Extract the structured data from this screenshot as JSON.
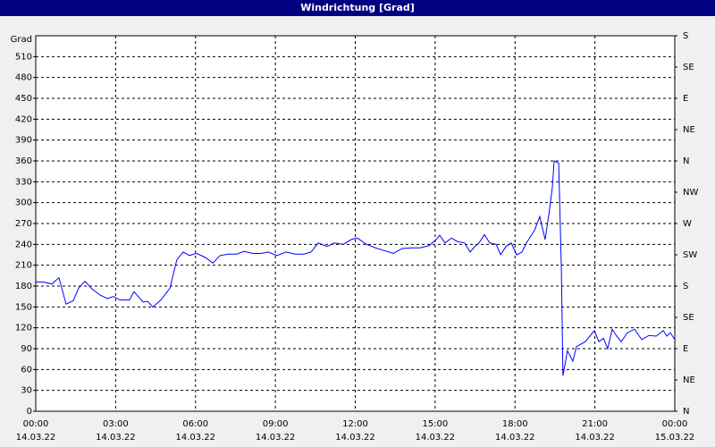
{
  "chart_data": {
    "type": "line",
    "title": "Windrichtung [Grad]",
    "y_label": "Grad",
    "xlim": [
      0,
      24
    ],
    "xticks": [
      {
        "value": 0,
        "label": "00:00"
      },
      {
        "value": 3,
        "label": "03:00"
      },
      {
        "value": 6,
        "label": "06:00"
      },
      {
        "value": 9,
        "label": "09:00"
      },
      {
        "value": 12,
        "label": "12:00"
      },
      {
        "value": 15,
        "label": "15:00"
      },
      {
        "value": 18,
        "label": "18:00"
      },
      {
        "value": 21,
        "label": "21:00"
      },
      {
        "value": 24,
        "label": "00:00"
      }
    ],
    "xtick_dates": [
      "14.03.22",
      "14.03.22",
      "14.03.22",
      "14.03.22",
      "14.03.22",
      "14.03.22",
      "14.03.22",
      "14.03.22",
      "15.03.22"
    ],
    "ylim": [
      0,
      540
    ],
    "yticks": [
      0,
      30,
      60,
      90,
      120,
      150,
      180,
      210,
      240,
      270,
      300,
      330,
      360,
      390,
      420,
      450,
      480,
      510
    ],
    "y2lim": [
      0,
      540
    ],
    "y2ticks": [
      {
        "value": 0,
        "label": "N"
      },
      {
        "value": 45,
        "label": "NE"
      },
      {
        "value": 90,
        "label": "E"
      },
      {
        "value": 135,
        "label": "SE"
      },
      {
        "value": 180,
        "label": "S"
      },
      {
        "value": 225,
        "label": "SW"
      },
      {
        "value": 270,
        "label": "W"
      },
      {
        "value": 315,
        "label": "NW"
      },
      {
        "value": 360,
        "label": "N"
      },
      {
        "value": 405,
        "label": "NE"
      },
      {
        "value": 450,
        "label": "E"
      },
      {
        "value": 495,
        "label": "SE"
      },
      {
        "value": 540,
        "label": "S"
      }
    ],
    "grid": true,
    "color": "#0000ff",
    "x": [
      0,
      0.27,
      0.6,
      0.87,
      1.14,
      1.41,
      1.61,
      1.85,
      2.11,
      2.42,
      2.69,
      2.92,
      3.16,
      3.52,
      3.69,
      4.03,
      4.2,
      4.4,
      4.7,
      5.04,
      5.3,
      5.54,
      5.77,
      6.04,
      6.38,
      6.65,
      6.92,
      7.25,
      7.55,
      7.82,
      8.16,
      8.46,
      8.73,
      9.06,
      9.4,
      9.74,
      10.07,
      10.34,
      10.61,
      10.94,
      11.21,
      11.55,
      11.85,
      12.08,
      12.42,
      12.76,
      13.09,
      13.43,
      13.76,
      14.1,
      14.43,
      14.77,
      15.04,
      15.17,
      15.37,
      15.61,
      15.84,
      16.11,
      16.31,
      16.52,
      16.65,
      16.85,
      17.05,
      17.29,
      17.46,
      17.66,
      17.86,
      18.06,
      18.26,
      18.46,
      18.73,
      18.93,
      19.13,
      19.27,
      19.4,
      19.47,
      19.64,
      19.74,
      19.8,
      19.97,
      20.17,
      20.31,
      20.64,
      20.98,
      21.15,
      21.32,
      21.48,
      21.65,
      21.82,
      21.99,
      22.22,
      22.49,
      22.76,
      23.03,
      23.3,
      23.57,
      23.7,
      23.83,
      24
    ],
    "values": [
      186,
      186,
      183,
      192,
      154,
      159,
      177,
      187,
      176,
      167,
      162,
      165,
      160,
      160,
      172,
      157,
      158,
      150,
      160,
      177,
      218,
      229,
      224,
      227,
      221,
      213,
      224,
      226,
      226,
      230,
      227,
      227,
      229,
      224,
      229,
      226,
      226,
      229,
      242,
      237,
      242,
      240,
      247,
      249,
      240,
      235,
      231,
      227,
      234,
      235,
      235,
      238,
      247,
      253,
      242,
      249,
      244,
      242,
      229,
      238,
      242,
      254,
      242,
      240,
      225,
      237,
      242,
      225,
      229,
      244,
      260,
      280,
      247,
      283,
      321,
      360,
      357,
      206,
      51,
      87,
      72,
      93,
      100,
      116,
      100,
      105,
      90,
      118,
      108,
      100,
      113,
      118,
      103,
      109,
      108,
      116,
      108,
      113,
      103
    ]
  }
}
